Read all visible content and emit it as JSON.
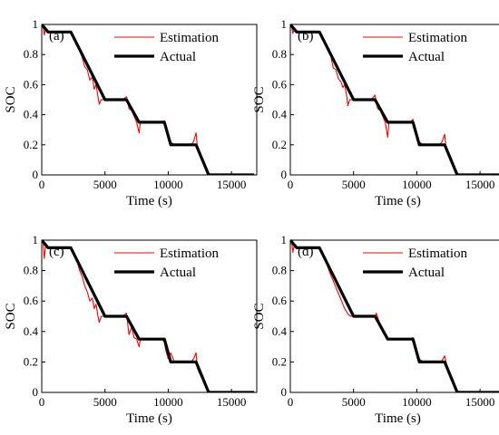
{
  "chart_data": [
    {
      "type": "line",
      "panel_label": "(a)",
      "xlabel": "Time (s)",
      "ylabel": "SOC",
      "xlim": [
        0,
        17000
      ],
      "ylim": [
        0,
        1
      ],
      "xticks": [
        0,
        5000,
        10000,
        15000
      ],
      "yticks": [
        0,
        0.2,
        0.4,
        0.6,
        0.8,
        1
      ],
      "ytick_labels": [
        "0",
        "0.2",
        "0.4",
        "0.6",
        "0.8",
        "1"
      ],
      "grid": false,
      "legend_position": "top-right",
      "series": [
        {
          "name": "Estimation",
          "color": "#ff0000",
          "x": [
            0,
            120,
            200,
            320,
            400,
            500,
            600,
            1000,
            1500,
            2000,
            2300,
            2400,
            2800,
            3200,
            3400,
            3600,
            3800,
            4000,
            4150,
            4300,
            4450,
            4550,
            4700,
            4800,
            5000,
            5500,
            6000,
            6400,
            6700,
            6800,
            6900,
            7100,
            7300,
            7500,
            7700,
            7800,
            8000,
            8500,
            9000,
            9500,
            9700,
            9800,
            10000,
            10200,
            10500,
            11000,
            11500,
            11800,
            12000,
            12200,
            12300,
            12500,
            12800,
            13200,
            13500,
            14000,
            15000,
            16000,
            16800
          ],
          "y": [
            1.0,
            0.98,
            0.93,
            0.98,
            0.96,
            0.95,
            0.95,
            0.95,
            0.95,
            0.95,
            0.95,
            0.94,
            0.87,
            0.78,
            0.72,
            0.7,
            0.63,
            0.65,
            0.57,
            0.6,
            0.52,
            0.47,
            0.5,
            0.5,
            0.5,
            0.5,
            0.5,
            0.5,
            0.52,
            0.49,
            0.44,
            0.43,
            0.39,
            0.35,
            0.28,
            0.35,
            0.35,
            0.35,
            0.35,
            0.35,
            0.36,
            0.3,
            0.27,
            0.22,
            0.2,
            0.2,
            0.2,
            0.2,
            0.22,
            0.28,
            0.19,
            0.14,
            0.08,
            0.01,
            0.0,
            0.0,
            0.0,
            0.0,
            0.0
          ]
        },
        {
          "name": "Actual",
          "color": "#000000",
          "x": [
            0,
            500,
            2300,
            5000,
            6700,
            7700,
            9700,
            10200,
            12200,
            13200,
            16800
          ],
          "y": [
            1.0,
            0.95,
            0.95,
            0.5,
            0.5,
            0.35,
            0.35,
            0.2,
            0.2,
            0.0,
            0.0
          ]
        }
      ]
    },
    {
      "type": "line",
      "panel_label": "(b)",
      "xlabel": "Time (s)",
      "ylabel": "SOC",
      "xlim": [
        0,
        17000
      ],
      "ylim": [
        0,
        1
      ],
      "xticks": [
        0,
        5000,
        10000,
        15000
      ],
      "yticks": [
        0,
        0.2,
        0.4,
        0.6,
        0.8,
        1
      ],
      "ytick_labels": [
        "0",
        "0.2",
        "0.4",
        "0.6",
        "0.8",
        "1"
      ],
      "grid": false,
      "legend_position": "top-right",
      "series": [
        {
          "name": "Estimation",
          "color": "#ff0000",
          "x": [
            0,
            120,
            200,
            320,
            400,
            500,
            600,
            1000,
            1500,
            2000,
            2300,
            2400,
            2800,
            3200,
            3400,
            3600,
            3800,
            4000,
            4150,
            4300,
            4450,
            4550,
            4700,
            4800,
            5000,
            5500,
            6000,
            6400,
            6700,
            6800,
            6900,
            7100,
            7300,
            7500,
            7700,
            7800,
            8000,
            8500,
            9000,
            9500,
            9700,
            9800,
            10000,
            10200,
            10500,
            11000,
            11500,
            11800,
            12000,
            12200,
            12300,
            12500,
            12800,
            13200,
            13500,
            14000,
            15000,
            16000,
            16800
          ],
          "y": [
            1.0,
            0.98,
            0.94,
            0.97,
            0.96,
            0.95,
            0.95,
            0.95,
            0.95,
            0.95,
            0.95,
            0.94,
            0.87,
            0.79,
            0.71,
            0.7,
            0.64,
            0.62,
            0.58,
            0.6,
            0.53,
            0.46,
            0.5,
            0.5,
            0.5,
            0.5,
            0.5,
            0.5,
            0.53,
            0.48,
            0.44,
            0.43,
            0.39,
            0.35,
            0.25,
            0.35,
            0.35,
            0.35,
            0.35,
            0.35,
            0.37,
            0.31,
            0.26,
            0.22,
            0.2,
            0.2,
            0.2,
            0.2,
            0.22,
            0.27,
            0.19,
            0.14,
            0.08,
            0.01,
            0.0,
            0.0,
            0.0,
            0.0,
            0.0
          ]
        },
        {
          "name": "Actual",
          "color": "#000000",
          "x": [
            0,
            500,
            2300,
            5000,
            6700,
            7700,
            9700,
            10200,
            12200,
            13200,
            16800
          ],
          "y": [
            1.0,
            0.95,
            0.95,
            0.5,
            0.5,
            0.35,
            0.35,
            0.2,
            0.2,
            0.0,
            0.0
          ]
        }
      ]
    },
    {
      "type": "line",
      "panel_label": "(c)",
      "xlabel": "Time (s)",
      "ylabel": "SOC",
      "xlim": [
        0,
        17000
      ],
      "ylim": [
        0,
        1
      ],
      "xticks": [
        0,
        5000,
        10000,
        15000
      ],
      "yticks": [
        0,
        0.2,
        0.4,
        0.6,
        0.8,
        1
      ],
      "ytick_labels": [
        "0",
        "0.2",
        "0.4",
        "0.6",
        "0.8",
        "1"
      ],
      "grid": false,
      "legend_position": "top-right",
      "series": [
        {
          "name": "Estimation",
          "color": "#ff0000",
          "x": [
            0,
            120,
            200,
            320,
            400,
            500,
            600,
            1000,
            1500,
            2000,
            2300,
            2400,
            2800,
            3000,
            3200,
            3400,
            3600,
            3800,
            4000,
            4150,
            4300,
            4450,
            4550,
            4700,
            4800,
            5000,
            5500,
            6000,
            6400,
            6700,
            6800,
            6900,
            7100,
            7300,
            7500,
            7700,
            7800,
            8000,
            8500,
            9000,
            9500,
            9700,
            9800,
            10000,
            10200,
            10500,
            11000,
            11500,
            11800,
            12000,
            12200,
            12300,
            12500,
            12800,
            13200,
            13500,
            14000,
            15000,
            16000,
            16800
          ],
          "y": [
            1.0,
            0.98,
            0.88,
            0.97,
            0.95,
            0.95,
            0.95,
            0.95,
            0.95,
            0.95,
            0.95,
            0.93,
            0.86,
            0.8,
            0.76,
            0.7,
            0.66,
            0.6,
            0.62,
            0.55,
            0.58,
            0.5,
            0.46,
            0.5,
            0.5,
            0.5,
            0.5,
            0.5,
            0.5,
            0.52,
            0.45,
            0.38,
            0.43,
            0.36,
            0.35,
            0.3,
            0.35,
            0.35,
            0.35,
            0.35,
            0.35,
            0.33,
            0.28,
            0.22,
            0.26,
            0.2,
            0.2,
            0.2,
            0.2,
            0.22,
            0.26,
            0.16,
            0.12,
            0.07,
            0.01,
            0.0,
            0.0,
            0.0,
            0.0,
            0.0
          ]
        },
        {
          "name": "Actual",
          "color": "#000000",
          "x": [
            0,
            500,
            2300,
            5000,
            6700,
            7700,
            9700,
            10200,
            12200,
            13200,
            16800
          ],
          "y": [
            1.0,
            0.95,
            0.95,
            0.5,
            0.5,
            0.35,
            0.35,
            0.2,
            0.2,
            0.0,
            0.0
          ]
        }
      ]
    },
    {
      "type": "line",
      "panel_label": "(d)",
      "xlabel": "Time (s)",
      "ylabel": "SOC",
      "xlim": [
        0,
        17000
      ],
      "ylim": [
        0,
        1
      ],
      "xticks": [
        0,
        5000,
        10000,
        15000
      ],
      "yticks": [
        0,
        0.2,
        0.4,
        0.6,
        0.8,
        1
      ],
      "ytick_labels": [
        "0",
        "0.2",
        "0.4",
        "0.6",
        "0.8",
        "1"
      ],
      "grid": false,
      "legend_position": "top-right",
      "series": [
        {
          "name": "Estimation",
          "color": "#ff0000",
          "x": [
            0,
            120,
            200,
            320,
            400,
            500,
            600,
            1000,
            1500,
            2000,
            2300,
            2400,
            2800,
            3200,
            3600,
            4000,
            4300,
            4600,
            4800,
            5000,
            5500,
            6000,
            6400,
            6700,
            6800,
            7000,
            7300,
            7700,
            7800,
            8000,
            8500,
            9000,
            9500,
            9700,
            9800,
            10200,
            10500,
            11000,
            11500,
            11800,
            12000,
            12200,
            12400,
            12800,
            13200,
            13500,
            14000,
            15000,
            16000,
            16800
          ],
          "y": [
            1.0,
            0.98,
            0.92,
            0.97,
            0.96,
            0.95,
            0.95,
            0.95,
            0.95,
            0.95,
            0.95,
            0.94,
            0.86,
            0.77,
            0.69,
            0.61,
            0.55,
            0.51,
            0.5,
            0.5,
            0.5,
            0.5,
            0.5,
            0.5,
            0.52,
            0.47,
            0.42,
            0.35,
            0.35,
            0.35,
            0.35,
            0.35,
            0.35,
            0.36,
            0.34,
            0.22,
            0.2,
            0.2,
            0.2,
            0.2,
            0.21,
            0.24,
            0.17,
            0.08,
            0.01,
            0.0,
            0.0,
            0.0,
            0.0,
            0.0
          ]
        },
        {
          "name": "Actual",
          "color": "#000000",
          "x": [
            0,
            500,
            2300,
            5000,
            6700,
            7700,
            9700,
            10200,
            12200,
            13200,
            16800
          ],
          "y": [
            1.0,
            0.95,
            0.95,
            0.5,
            0.5,
            0.35,
            0.35,
            0.2,
            0.2,
            0.0,
            0.0
          ]
        }
      ]
    }
  ]
}
